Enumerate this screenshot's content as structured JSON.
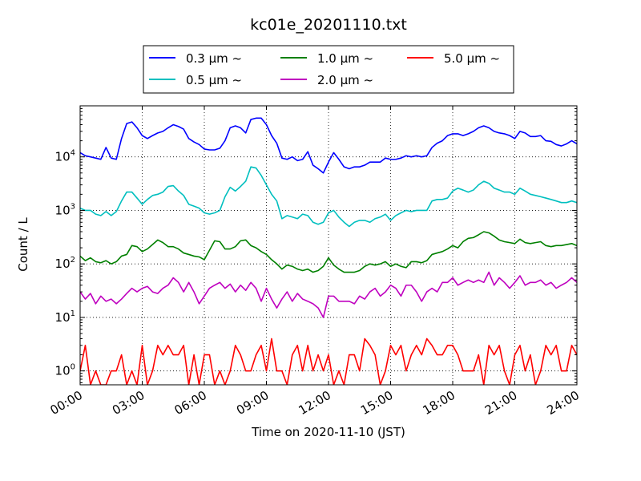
{
  "chart_data": {
    "type": "line",
    "title": "kc01e_20201110.txt",
    "xlabel": "Time on 2020-11-10 (JST)",
    "ylabel": "Count / L",
    "x_unit": "hours",
    "xlim": [
      0,
      24
    ],
    "ylim": [
      0.55,
      90000
    ],
    "yscale": "log",
    "grid": true,
    "grid_style": "dotted",
    "legend_position": "top-center",
    "x_ticks": [
      {
        "value": 0,
        "label": "00:00"
      },
      {
        "value": 3,
        "label": "03:00"
      },
      {
        "value": 6,
        "label": "06:00"
      },
      {
        "value": 9,
        "label": "09:00"
      },
      {
        "value": 12,
        "label": "12:00"
      },
      {
        "value": 15,
        "label": "15:00"
      },
      {
        "value": 18,
        "label": "18:00"
      },
      {
        "value": 21,
        "label": "21:00"
      },
      {
        "value": 24,
        "label": "24:00"
      }
    ],
    "y_ticks": [
      {
        "value": 1,
        "base": "10",
        "exp": "0"
      },
      {
        "value": 10,
        "base": "10",
        "exp": "1"
      },
      {
        "value": 100,
        "base": "10",
        "exp": "2"
      },
      {
        "value": 1000,
        "base": "10",
        "exp": "3"
      },
      {
        "value": 10000,
        "base": "10",
        "exp": "4"
      }
    ],
    "series": [
      {
        "name": "0.3 μm ~",
        "color": "#0000ff",
        "x": [
          0,
          0.25,
          0.5,
          0.75,
          1.0,
          1.25,
          1.5,
          1.75,
          2.0,
          2.25,
          2.5,
          2.75,
          3.0,
          3.25,
          3.5,
          3.75,
          4.0,
          4.25,
          4.5,
          4.75,
          5.0,
          5.25,
          5.5,
          5.75,
          6.0,
          6.25,
          6.5,
          6.75,
          7.0,
          7.25,
          7.5,
          7.75,
          8.0,
          8.25,
          8.5,
          8.75,
          9.0,
          9.25,
          9.5,
          9.75,
          10.0,
          10.25,
          10.5,
          10.75,
          11.0,
          11.25,
          11.5,
          11.75,
          12.0,
          12.25,
          12.5,
          12.75,
          13.0,
          13.25,
          13.5,
          13.75,
          14.0,
          14.25,
          14.5,
          14.75,
          15.0,
          15.25,
          15.5,
          15.75,
          16.0,
          16.25,
          16.5,
          16.75,
          17.0,
          17.25,
          17.5,
          17.75,
          18.0,
          18.25,
          18.5,
          18.75,
          19.0,
          19.25,
          19.5,
          19.75,
          20.0,
          20.25,
          20.5,
          20.75,
          21.0,
          21.25,
          21.5,
          21.75,
          22.0,
          22.25,
          22.5,
          22.75,
          23.0,
          23.25,
          23.5,
          23.75,
          24.0
        ],
        "y": [
          12000,
          10500,
          10000,
          9500,
          9000,
          15000,
          9500,
          9000,
          22000,
          42000,
          45000,
          35000,
          25000,
          22000,
          25000,
          28000,
          30000,
          35000,
          40000,
          37000,
          33000,
          22000,
          19000,
          17000,
          14000,
          13500,
          13500,
          14500,
          20000,
          35000,
          38000,
          35000,
          28000,
          50000,
          53000,
          53000,
          40000,
          25000,
          18000,
          9500,
          9000,
          10000,
          8500,
          9000,
          12500,
          7000,
          6000,
          5000,
          8000,
          12000,
          9000,
          6500,
          6000,
          6500,
          6500,
          7000,
          8000,
          8000,
          8000,
          9500,
          9000,
          9000,
          9500,
          10500,
          10000,
          10500,
          10000,
          10500,
          15000,
          18000,
          20000,
          25000,
          27000,
          27000,
          25000,
          27000,
          30000,
          35000,
          38000,
          35000,
          30000,
          28000,
          27000,
          25000,
          22000,
          30000,
          28000,
          24000,
          24000,
          25000,
          20000,
          19500,
          17000,
          16000,
          17500,
          20000,
          17500
        ]
      },
      {
        "name": "0.5 μm ~",
        "color": "#00bfbf",
        "x": [
          0,
          0.25,
          0.5,
          0.75,
          1.0,
          1.25,
          1.5,
          1.75,
          2.0,
          2.25,
          2.5,
          2.75,
          3.0,
          3.25,
          3.5,
          3.75,
          4.0,
          4.25,
          4.5,
          4.75,
          5.0,
          5.25,
          5.5,
          5.75,
          6.0,
          6.25,
          6.5,
          6.75,
          7.0,
          7.25,
          7.5,
          7.75,
          8.0,
          8.25,
          8.5,
          8.75,
          9.0,
          9.25,
          9.5,
          9.75,
          10.0,
          10.25,
          10.5,
          10.75,
          11.0,
          11.25,
          11.5,
          11.75,
          12.0,
          12.25,
          12.5,
          12.75,
          13.0,
          13.25,
          13.5,
          13.75,
          14.0,
          14.25,
          14.5,
          14.75,
          15.0,
          15.25,
          15.5,
          15.75,
          16.0,
          16.25,
          16.5,
          16.75,
          17.0,
          17.25,
          17.5,
          17.75,
          18.0,
          18.25,
          18.5,
          18.75,
          19.0,
          19.25,
          19.5,
          19.75,
          20.0,
          20.25,
          20.5,
          20.75,
          21.0,
          21.25,
          21.5,
          21.75,
          22.0,
          22.25,
          22.5,
          22.75,
          23.0,
          23.25,
          23.5,
          23.75,
          24.0
        ],
        "y": [
          1100,
          1000,
          1000,
          850,
          800,
          950,
          800,
          950,
          1500,
          2200,
          2200,
          1700,
          1300,
          1600,
          1900,
          2000,
          2200,
          2800,
          2900,
          2300,
          1900,
          1300,
          1200,
          1100,
          900,
          850,
          900,
          1000,
          1800,
          2700,
          2300,
          2800,
          3500,
          6500,
          6200,
          4500,
          3000,
          2000,
          1500,
          700,
          800,
          750,
          700,
          850,
          800,
          600,
          550,
          600,
          900,
          1000,
          750,
          600,
          500,
          600,
          650,
          650,
          600,
          700,
          750,
          850,
          650,
          800,
          900,
          1000,
          950,
          1000,
          1000,
          1000,
          1500,
          1600,
          1600,
          1700,
          2300,
          2600,
          2400,
          2200,
          2400,
          3000,
          3500,
          3200,
          2600,
          2400,
          2200,
          2200,
          2000,
          2600,
          2300,
          2000,
          1900,
          1800,
          1700,
          1600,
          1500,
          1400,
          1400,
          1500,
          1400
        ]
      },
      {
        "name": "1.0 μm ~",
        "color": "#008000",
        "x": [
          0,
          0.25,
          0.5,
          0.75,
          1.0,
          1.25,
          1.5,
          1.75,
          2.0,
          2.25,
          2.5,
          2.75,
          3.0,
          3.25,
          3.5,
          3.75,
          4.0,
          4.25,
          4.5,
          4.75,
          5.0,
          5.25,
          5.5,
          5.75,
          6.0,
          6.25,
          6.5,
          6.75,
          7.0,
          7.25,
          7.5,
          7.75,
          8.0,
          8.25,
          8.5,
          8.75,
          9.0,
          9.25,
          9.5,
          9.75,
          10.0,
          10.25,
          10.5,
          10.75,
          11.0,
          11.25,
          11.5,
          11.75,
          12.0,
          12.25,
          12.5,
          12.75,
          13.0,
          13.25,
          13.5,
          13.75,
          14.0,
          14.25,
          14.5,
          14.75,
          15.0,
          15.25,
          15.5,
          15.75,
          16.0,
          16.25,
          16.5,
          16.75,
          17.0,
          17.25,
          17.5,
          17.75,
          18.0,
          18.25,
          18.5,
          18.75,
          19.0,
          19.25,
          19.5,
          19.75,
          20.0,
          20.25,
          20.5,
          20.75,
          21.0,
          21.25,
          21.5,
          21.75,
          22.0,
          22.25,
          22.5,
          22.75,
          23.0,
          23.25,
          23.5,
          23.75,
          24.0
        ],
        "y": [
          140,
          115,
          130,
          110,
          105,
          115,
          100,
          110,
          140,
          150,
          220,
          210,
          170,
          190,
          230,
          280,
          250,
          210,
          210,
          190,
          160,
          150,
          140,
          135,
          120,
          180,
          270,
          260,
          190,
          190,
          210,
          270,
          280,
          220,
          200,
          170,
          150,
          120,
          100,
          80,
          95,
          90,
          80,
          75,
          80,
          70,
          75,
          90,
          130,
          95,
          80,
          70,
          70,
          70,
          75,
          90,
          100,
          95,
          100,
          110,
          90,
          100,
          90,
          85,
          110,
          110,
          105,
          115,
          150,
          160,
          170,
          190,
          220,
          200,
          260,
          300,
          310,
          350,
          400,
          380,
          330,
          280,
          260,
          250,
          240,
          290,
          250,
          240,
          250,
          260,
          220,
          210,
          220,
          220,
          230,
          240,
          220
        ]
      },
      {
        "name": "2.0 μm ~",
        "color": "#bf00bf",
        "x": [
          0,
          0.25,
          0.5,
          0.75,
          1.0,
          1.25,
          1.5,
          1.75,
          2.0,
          2.25,
          2.5,
          2.75,
          3.0,
          3.25,
          3.5,
          3.75,
          4.0,
          4.25,
          4.5,
          4.75,
          5.0,
          5.25,
          5.5,
          5.75,
          6.0,
          6.25,
          6.5,
          6.75,
          7.0,
          7.25,
          7.5,
          7.75,
          8.0,
          8.25,
          8.5,
          8.75,
          9.0,
          9.25,
          9.5,
          9.75,
          10.0,
          10.25,
          10.5,
          10.75,
          11.0,
          11.25,
          11.5,
          11.75,
          12.0,
          12.25,
          12.5,
          12.75,
          13.0,
          13.25,
          13.5,
          13.75,
          14.0,
          14.25,
          14.5,
          14.75,
          15.0,
          15.25,
          15.5,
          15.75,
          16.0,
          16.25,
          16.5,
          16.75,
          17.0,
          17.25,
          17.5,
          17.75,
          18.0,
          18.25,
          18.5,
          18.75,
          19.0,
          19.25,
          19.5,
          19.75,
          20.0,
          20.25,
          20.5,
          20.75,
          21.0,
          21.25,
          21.5,
          21.75,
          22.0,
          22.25,
          22.5,
          22.75,
          23.0,
          23.25,
          23.5,
          23.75,
          24.0
        ],
        "y": [
          30,
          22,
          28,
          18,
          25,
          20,
          22,
          18,
          22,
          28,
          35,
          30,
          35,
          38,
          30,
          28,
          35,
          40,
          55,
          45,
          30,
          45,
          30,
          18,
          25,
          35,
          40,
          45,
          35,
          42,
          30,
          40,
          32,
          45,
          35,
          20,
          35,
          22,
          15,
          22,
          30,
          20,
          28,
          22,
          20,
          18,
          15,
          10,
          25,
          25,
          20,
          20,
          20,
          18,
          25,
          22,
          30,
          35,
          25,
          30,
          40,
          35,
          25,
          40,
          40,
          30,
          20,
          30,
          35,
          30,
          45,
          45,
          55,
          40,
          45,
          50,
          45,
          50,
          45,
          70,
          40,
          55,
          45,
          35,
          45,
          60,
          40,
          45,
          45,
          50,
          40,
          45,
          35,
          40,
          45,
          55,
          45
        ]
      },
      {
        "name": "5.0 μm ~",
        "color": "#ff0000",
        "x": [
          0,
          0.25,
          0.5,
          0.75,
          1.0,
          1.25,
          1.5,
          1.75,
          2.0,
          2.25,
          2.5,
          2.75,
          3.0,
          3.25,
          3.5,
          3.75,
          4.0,
          4.25,
          4.5,
          4.75,
          5.0,
          5.25,
          5.5,
          5.75,
          6.0,
          6.25,
          6.5,
          6.75,
          7.0,
          7.25,
          7.5,
          7.75,
          8.0,
          8.25,
          8.5,
          8.75,
          9.0,
          9.25,
          9.5,
          9.75,
          10.0,
          10.25,
          10.5,
          10.75,
          11.0,
          11.25,
          11.5,
          11.75,
          12.0,
          12.25,
          12.5,
          12.75,
          13.0,
          13.25,
          13.5,
          13.75,
          14.0,
          14.25,
          14.5,
          14.75,
          15.0,
          15.25,
          15.5,
          15.75,
          16.0,
          16.25,
          16.5,
          16.75,
          17.0,
          17.25,
          17.5,
          17.75,
          18.0,
          18.25,
          18.5,
          18.75,
          19.0,
          19.25,
          19.5,
          19.75,
          20.0,
          20.25,
          20.5,
          20.75,
          21.0,
          21.25,
          21.5,
          21.75,
          22.0,
          22.25,
          22.5,
          22.75,
          23.0,
          23.25,
          23.5,
          23.75,
          24.0
        ],
        "y": [
          1,
          3,
          0.5,
          1,
          0.5,
          0.5,
          1,
          1,
          2,
          0.5,
          1,
          0.5,
          3,
          0.5,
          1,
          3,
          2,
          3,
          2,
          2,
          3,
          0.5,
          2,
          0.5,
          2,
          2,
          0.5,
          1,
          0.5,
          1,
          3,
          2,
          1,
          1,
          2,
          3,
          1,
          4,
          1,
          1,
          0.5,
          2,
          3,
          1,
          3,
          1,
          2,
          1,
          2,
          0.5,
          1,
          0.5,
          2,
          2,
          1,
          4,
          3,
          2,
          0.5,
          1,
          3,
          2,
          3,
          1,
          2,
          3,
          2,
          4,
          3,
          2,
          2,
          3,
          3,
          2,
          1,
          1,
          1,
          2,
          0.5,
          3,
          2,
          3,
          1,
          0.5,
          2,
          3,
          1,
          2,
          0.5,
          1,
          3,
          2,
          3,
          1,
          1,
          3,
          2
        ]
      }
    ]
  }
}
